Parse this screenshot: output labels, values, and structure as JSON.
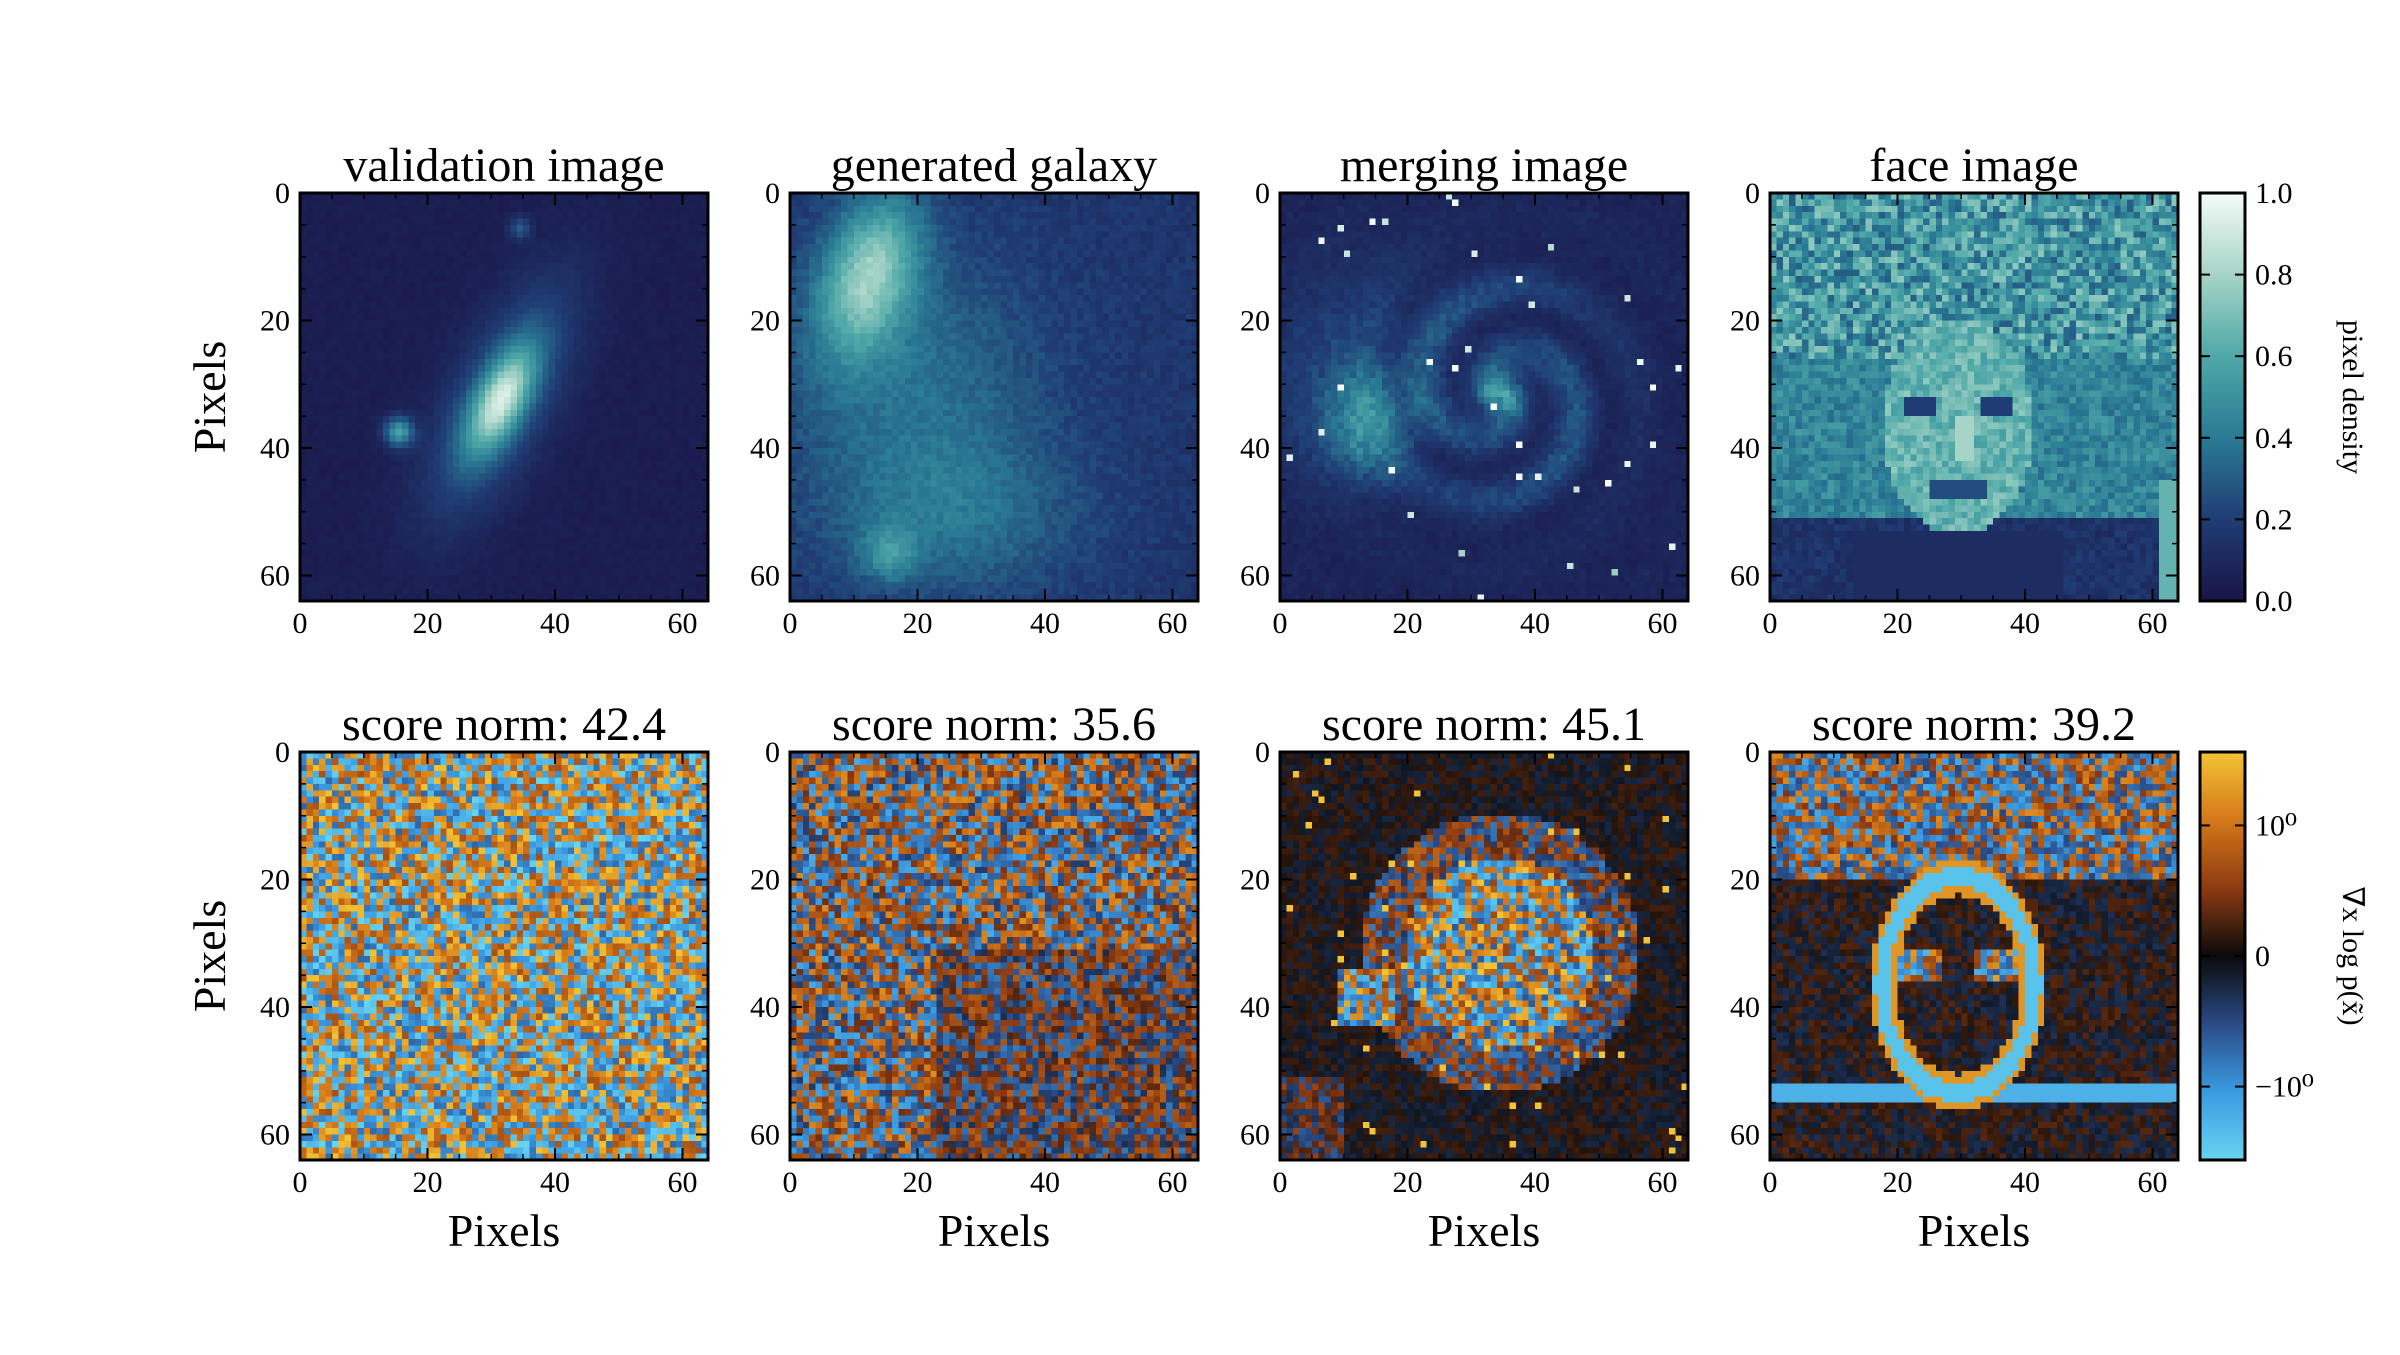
{
  "chart_data": {
    "type": "heatmap",
    "grid": false,
    "image_size": [
      64,
      64
    ],
    "panels": [
      {
        "row": 0,
        "col": 0,
        "title": "validation image",
        "content": "galaxy",
        "cmap": "density",
        "ylabel": "Pixels",
        "xlabel": ""
      },
      {
        "row": 0,
        "col": 1,
        "title": "generated galaxy",
        "content": "generated",
        "cmap": "density",
        "ylabel": "",
        "xlabel": ""
      },
      {
        "row": 0,
        "col": 2,
        "title": "merging image",
        "content": "spiral",
        "cmap": "density",
        "ylabel": "",
        "xlabel": ""
      },
      {
        "row": 0,
        "col": 3,
        "title": "face image",
        "content": "face",
        "cmap": "density",
        "ylabel": "",
        "xlabel": ""
      },
      {
        "row": 1,
        "col": 0,
        "title": "score norm: 42.4",
        "score_norm": 42.4,
        "content": "noise",
        "cmap": "score",
        "ylabel": "Pixels",
        "xlabel": "Pixels"
      },
      {
        "row": 1,
        "col": 1,
        "title": "score norm: 35.6",
        "score_norm": 35.6,
        "content": "noise2",
        "cmap": "score",
        "ylabel": "",
        "xlabel": "Pixels"
      },
      {
        "row": 1,
        "col": 2,
        "title": "score norm: 45.1",
        "score_norm": 45.1,
        "content": "spiralscore",
        "cmap": "score",
        "ylabel": "",
        "xlabel": "Pixels"
      },
      {
        "row": 1,
        "col": 3,
        "title": "score norm: 39.2",
        "score_norm": 39.2,
        "content": "facescore",
        "cmap": "score",
        "ylabel": "",
        "xlabel": "Pixels"
      }
    ],
    "x_ticks": [
      "0",
      "20",
      "40",
      "60"
    ],
    "y_ticks": [
      "0",
      "20",
      "40",
      "60"
    ],
    "xlim": [
      0,
      64
    ],
    "ylim": [
      64,
      0
    ],
    "colorbars": [
      {
        "label": "pixel density",
        "range": [
          0.0,
          1.0
        ],
        "ticks": [
          "0.0",
          "0.2",
          "0.4",
          "0.6",
          "0.8",
          "1.0"
        ],
        "colors": [
          "#1a1446",
          "#1f3d74",
          "#2a7a94",
          "#4fa8a8",
          "#a6d4c6",
          "#f4fbf8"
        ]
      },
      {
        "label": "∇x log p(x̃)",
        "scale": "symlog",
        "ticks": [
          "10⁰",
          "0",
          "−10⁰"
        ],
        "colors": [
          "#67d4f0",
          "#3b9ae1",
          "#2a4a85",
          "#0a0a0a",
          "#8c3a12",
          "#d4781a",
          "#f2c335"
        ]
      }
    ]
  }
}
